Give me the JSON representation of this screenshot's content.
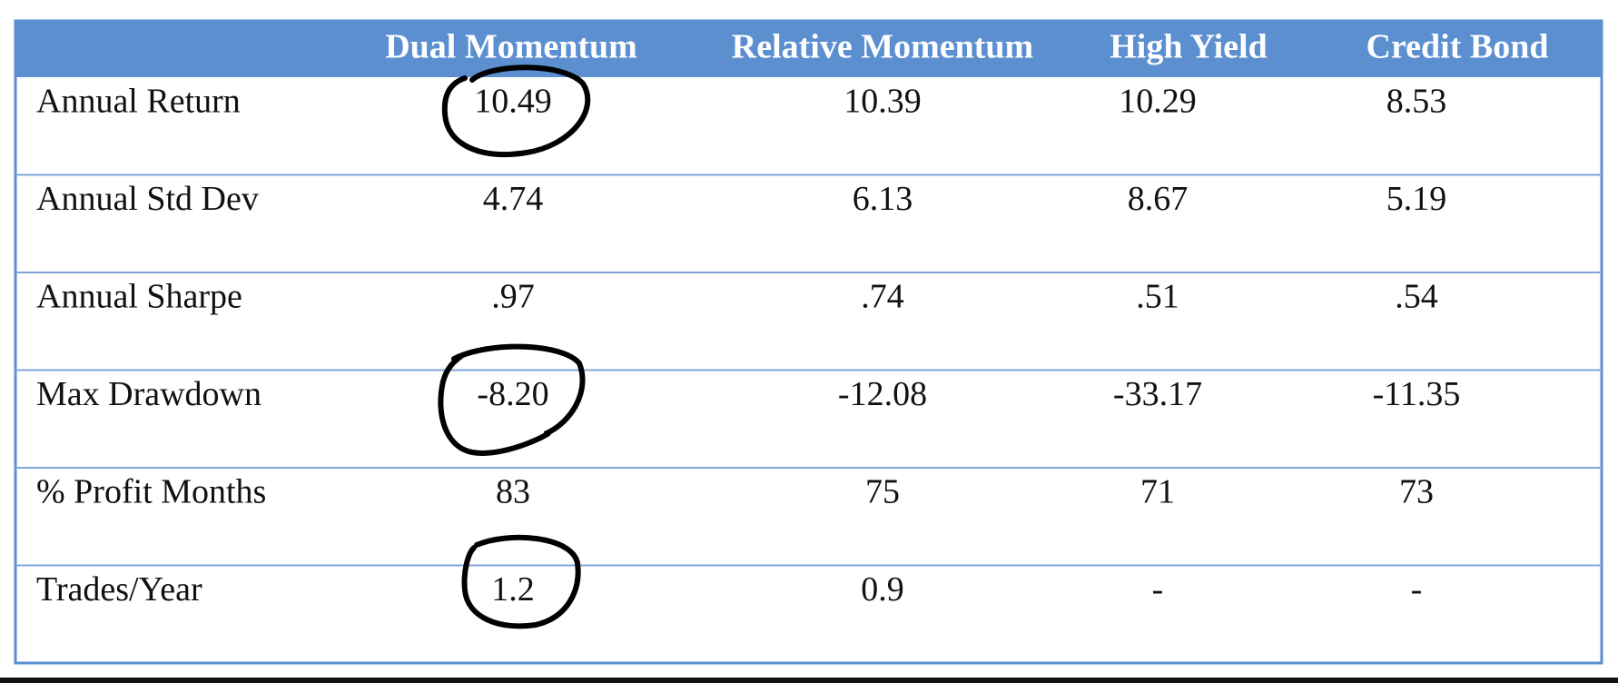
{
  "table": {
    "headers": [
      "Dual Momentum",
      "Relative Momentum",
      "High Yield",
      "Credit Bond"
    ],
    "rows": [
      {
        "label": "Annual Return",
        "values": [
          "10.49",
          "10.39",
          "10.29",
          "8.53"
        ]
      },
      {
        "label": "Annual Std Dev",
        "values": [
          "4.74",
          "6.13",
          "8.67",
          "5.19"
        ]
      },
      {
        "label": "Annual Sharpe",
        "values": [
          ".97",
          ".74",
          ".51",
          ".54"
        ]
      },
      {
        "label": "Max Drawdown",
        "values": [
          "-8.20",
          "-12.08",
          "-33.17",
          "-11.35"
        ]
      },
      {
        "label": "% Profit Months",
        "values": [
          "83",
          "75",
          "71",
          "73"
        ]
      },
      {
        "label": "Trades/Year",
        "values": [
          "1.2",
          "0.9",
          "-",
          "-"
        ]
      }
    ]
  }
}
